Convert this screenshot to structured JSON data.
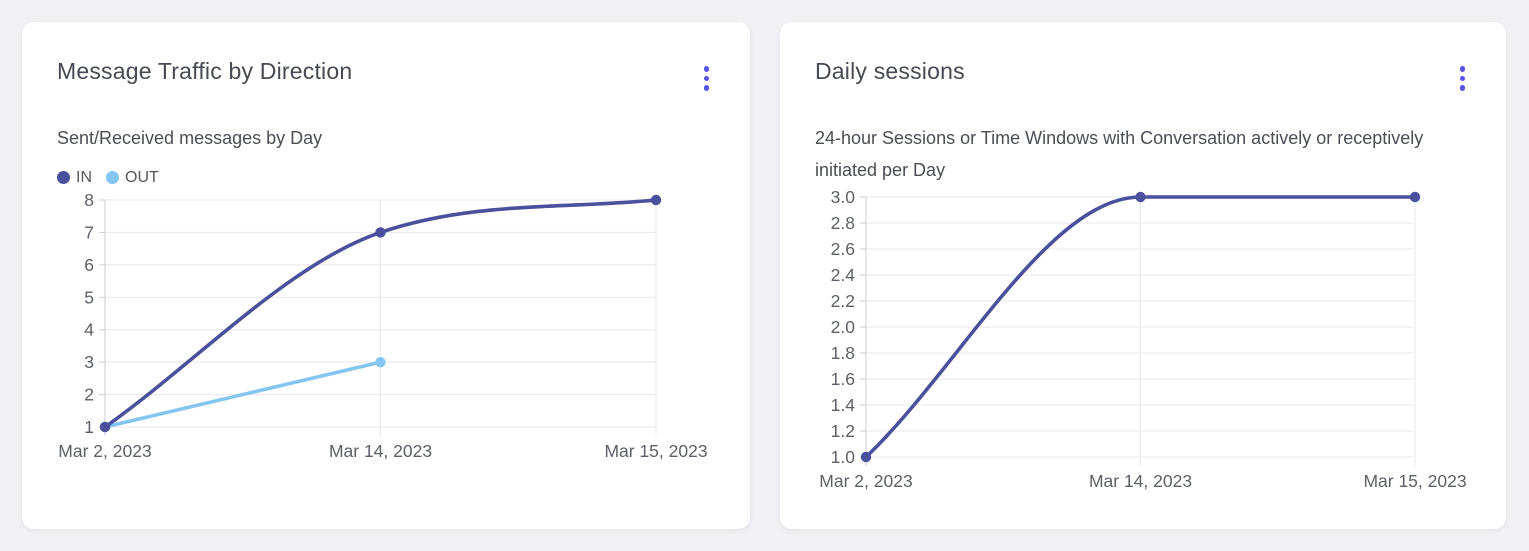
{
  "page": {
    "background": "#f1f1f4"
  },
  "colors": {
    "menu_accent": "#5a51e8",
    "series_in": "#4a509b",
    "series_out": "#84c5f1",
    "grid_line": "#e8e8ec",
    "axis_line": "#cfcfd6"
  },
  "cards": [
    {
      "title": "Message Traffic by Direction",
      "subtitle": "Sent/Received messages by Day",
      "menu_icon": "kebab-menu-icon"
    },
    {
      "title": "Daily sessions",
      "subtitle": "24-hour Sessions or Time Windows with Conversation actively or receptively initiated per Day",
      "menu_icon": "kebab-menu-icon"
    }
  ],
  "chart_data": [
    {
      "type": "line",
      "title": "Message Traffic by Direction",
      "subtitle": "Sent/Received messages by Day",
      "categories": [
        "Mar 2, 2023",
        "Mar 14, 2023",
        "Mar 15, 2023"
      ],
      "series": [
        {
          "name": "IN",
          "values": [
            1,
            7,
            8
          ],
          "color": "#4a509b"
        },
        {
          "name": "OUT",
          "values": [
            1,
            3,
            null
          ],
          "color": "#84c5f1"
        }
      ],
      "ylim": [
        1,
        8
      ],
      "yticks": [
        8,
        7,
        6,
        5,
        4,
        3,
        2,
        1
      ],
      "ytick_decimals": 0,
      "legend_position": "top-left",
      "grid": true,
      "smooth": true
    },
    {
      "type": "line",
      "title": "Daily sessions",
      "subtitle": "24-hour Sessions or Time Windows with Conversation actively or receptively initiated per Day",
      "categories": [
        "Mar 2, 2023",
        "Mar 14, 2023",
        "Mar 15, 2023"
      ],
      "series": [
        {
          "name": "Daily sessions",
          "values": [
            1,
            3,
            3
          ],
          "color": "#4a509b"
        }
      ],
      "ylim": [
        1,
        3
      ],
      "yticks": [
        3.0,
        2.8,
        2.6,
        2.4,
        2.2,
        2.0,
        1.8,
        1.6,
        1.4,
        1.2,
        1.0
      ],
      "ytick_decimals": 1,
      "legend_position": "none",
      "grid": true,
      "smooth": true
    }
  ]
}
